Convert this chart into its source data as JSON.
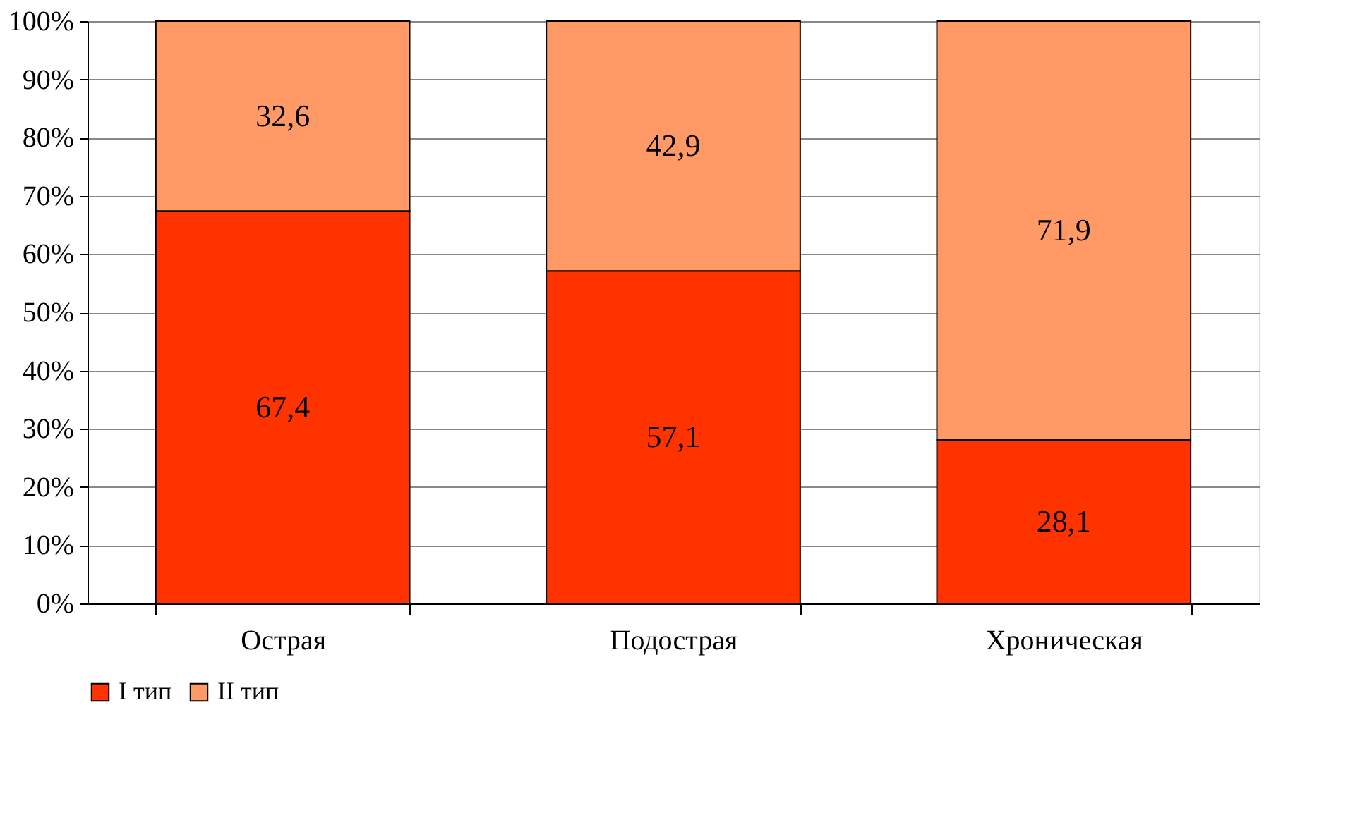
{
  "chart_data": {
    "type": "bar",
    "stacked": true,
    "categories": [
      "Острая",
      "Подострая",
      "Хроническая"
    ],
    "series": [
      {
        "name": "I тип",
        "color": "#ff3300",
        "values": [
          67.4,
          57.1,
          28.1
        ],
        "value_labels": [
          "67,4",
          "57,1",
          "28,1"
        ]
      },
      {
        "name": "II тип",
        "color": "#ff9966",
        "values": [
          32.6,
          42.9,
          71.9
        ],
        "value_labels": [
          "32,6",
          "42,9",
          "71,9"
        ]
      }
    ],
    "ylim": [
      0,
      100
    ],
    "yticks": [
      {
        "value": 0,
        "label": "0%"
      },
      {
        "value": 10,
        "label": "10%"
      },
      {
        "value": 20,
        "label": "20%"
      },
      {
        "value": 30,
        "label": "30%"
      },
      {
        "value": 40,
        "label": "40%"
      },
      {
        "value": 50,
        "label": "50%"
      },
      {
        "value": 60,
        "label": "60%"
      },
      {
        "value": 70,
        "label": "70%"
      },
      {
        "value": 80,
        "label": "80%"
      },
      {
        "value": 90,
        "label": "90%"
      },
      {
        "value": 100,
        "label": "100%"
      }
    ],
    "grid": "y",
    "legend": "bottom"
  }
}
